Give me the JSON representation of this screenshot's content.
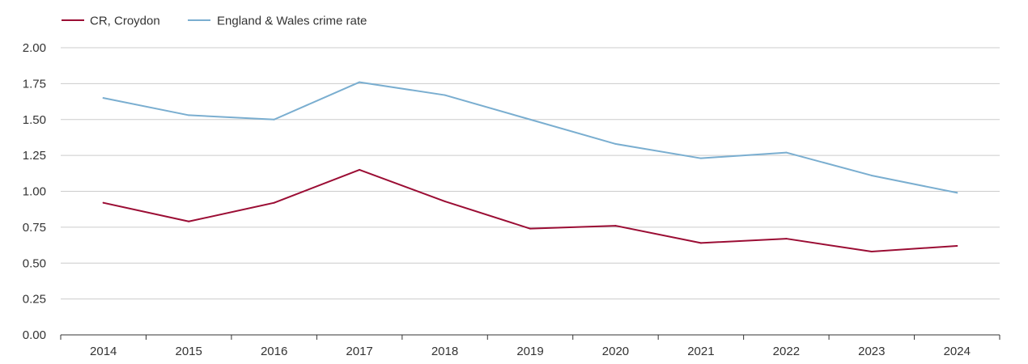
{
  "chart_data": {
    "type": "line",
    "title": "",
    "xlabel": "",
    "ylabel": "",
    "categories": [
      "2014",
      "2015",
      "2016",
      "2017",
      "2018",
      "2019",
      "2020",
      "2021",
      "2022",
      "2023",
      "2024"
    ],
    "ylim": [
      0,
      2
    ],
    "y_ticks": [
      "0.00",
      "0.25",
      "0.50",
      "0.75",
      "1.00",
      "1.25",
      "1.50",
      "1.75",
      "2.00"
    ],
    "grid": true,
    "legend_position": "top-left",
    "series": [
      {
        "name": "CR, Croydon",
        "color": "#9b0d34",
        "values": [
          0.92,
          0.79,
          0.92,
          1.15,
          0.93,
          0.74,
          0.76,
          0.64,
          0.67,
          0.58,
          0.62
        ]
      },
      {
        "name": "England & Wales crime rate",
        "color": "#7aaed0",
        "values": [
          1.65,
          1.53,
          1.5,
          1.76,
          1.67,
          1.5,
          1.33,
          1.23,
          1.27,
          1.11,
          0.99
        ]
      }
    ]
  }
}
